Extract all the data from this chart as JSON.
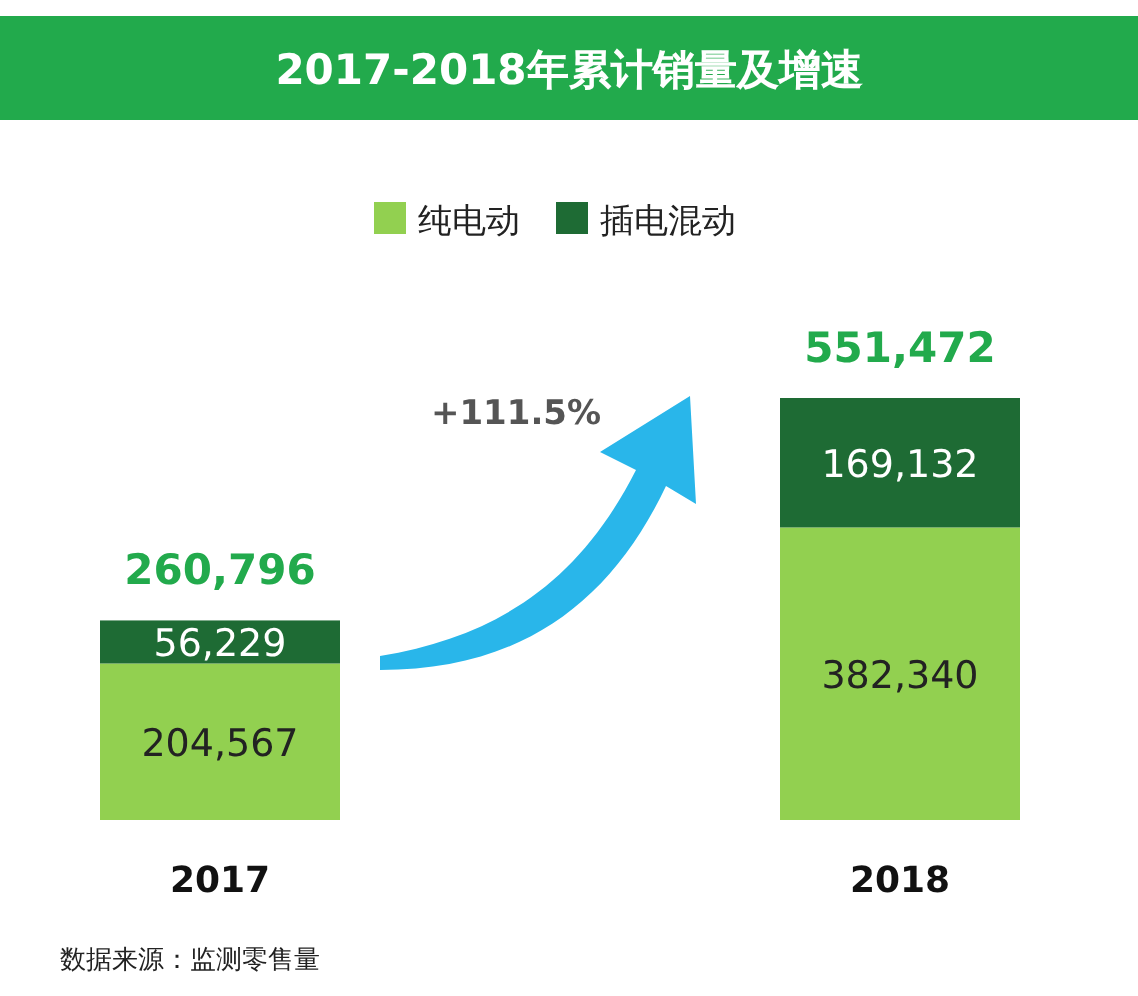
{
  "chart_data": {
    "type": "bar",
    "title": "2017-2018年累计销量及增速",
    "categories": [
      "2017",
      "2018"
    ],
    "stacked": true,
    "legend": "top",
    "series": [
      {
        "name": "纯电动",
        "color": "#92d050",
        "values": [
          204567,
          382340
        ],
        "value_labels": [
          "204,567",
          "382,340"
        ]
      },
      {
        "name": "插电混动",
        "color": "#1e6b34",
        "values": [
          56229,
          169132
        ],
        "value_labels": [
          "56,229",
          "169,132"
        ]
      }
    ],
    "totals": [
      "260,796",
      "551,472"
    ],
    "annotations": [
      "+111.5%",
      "数据来源：监测零售量"
    ]
  }
}
